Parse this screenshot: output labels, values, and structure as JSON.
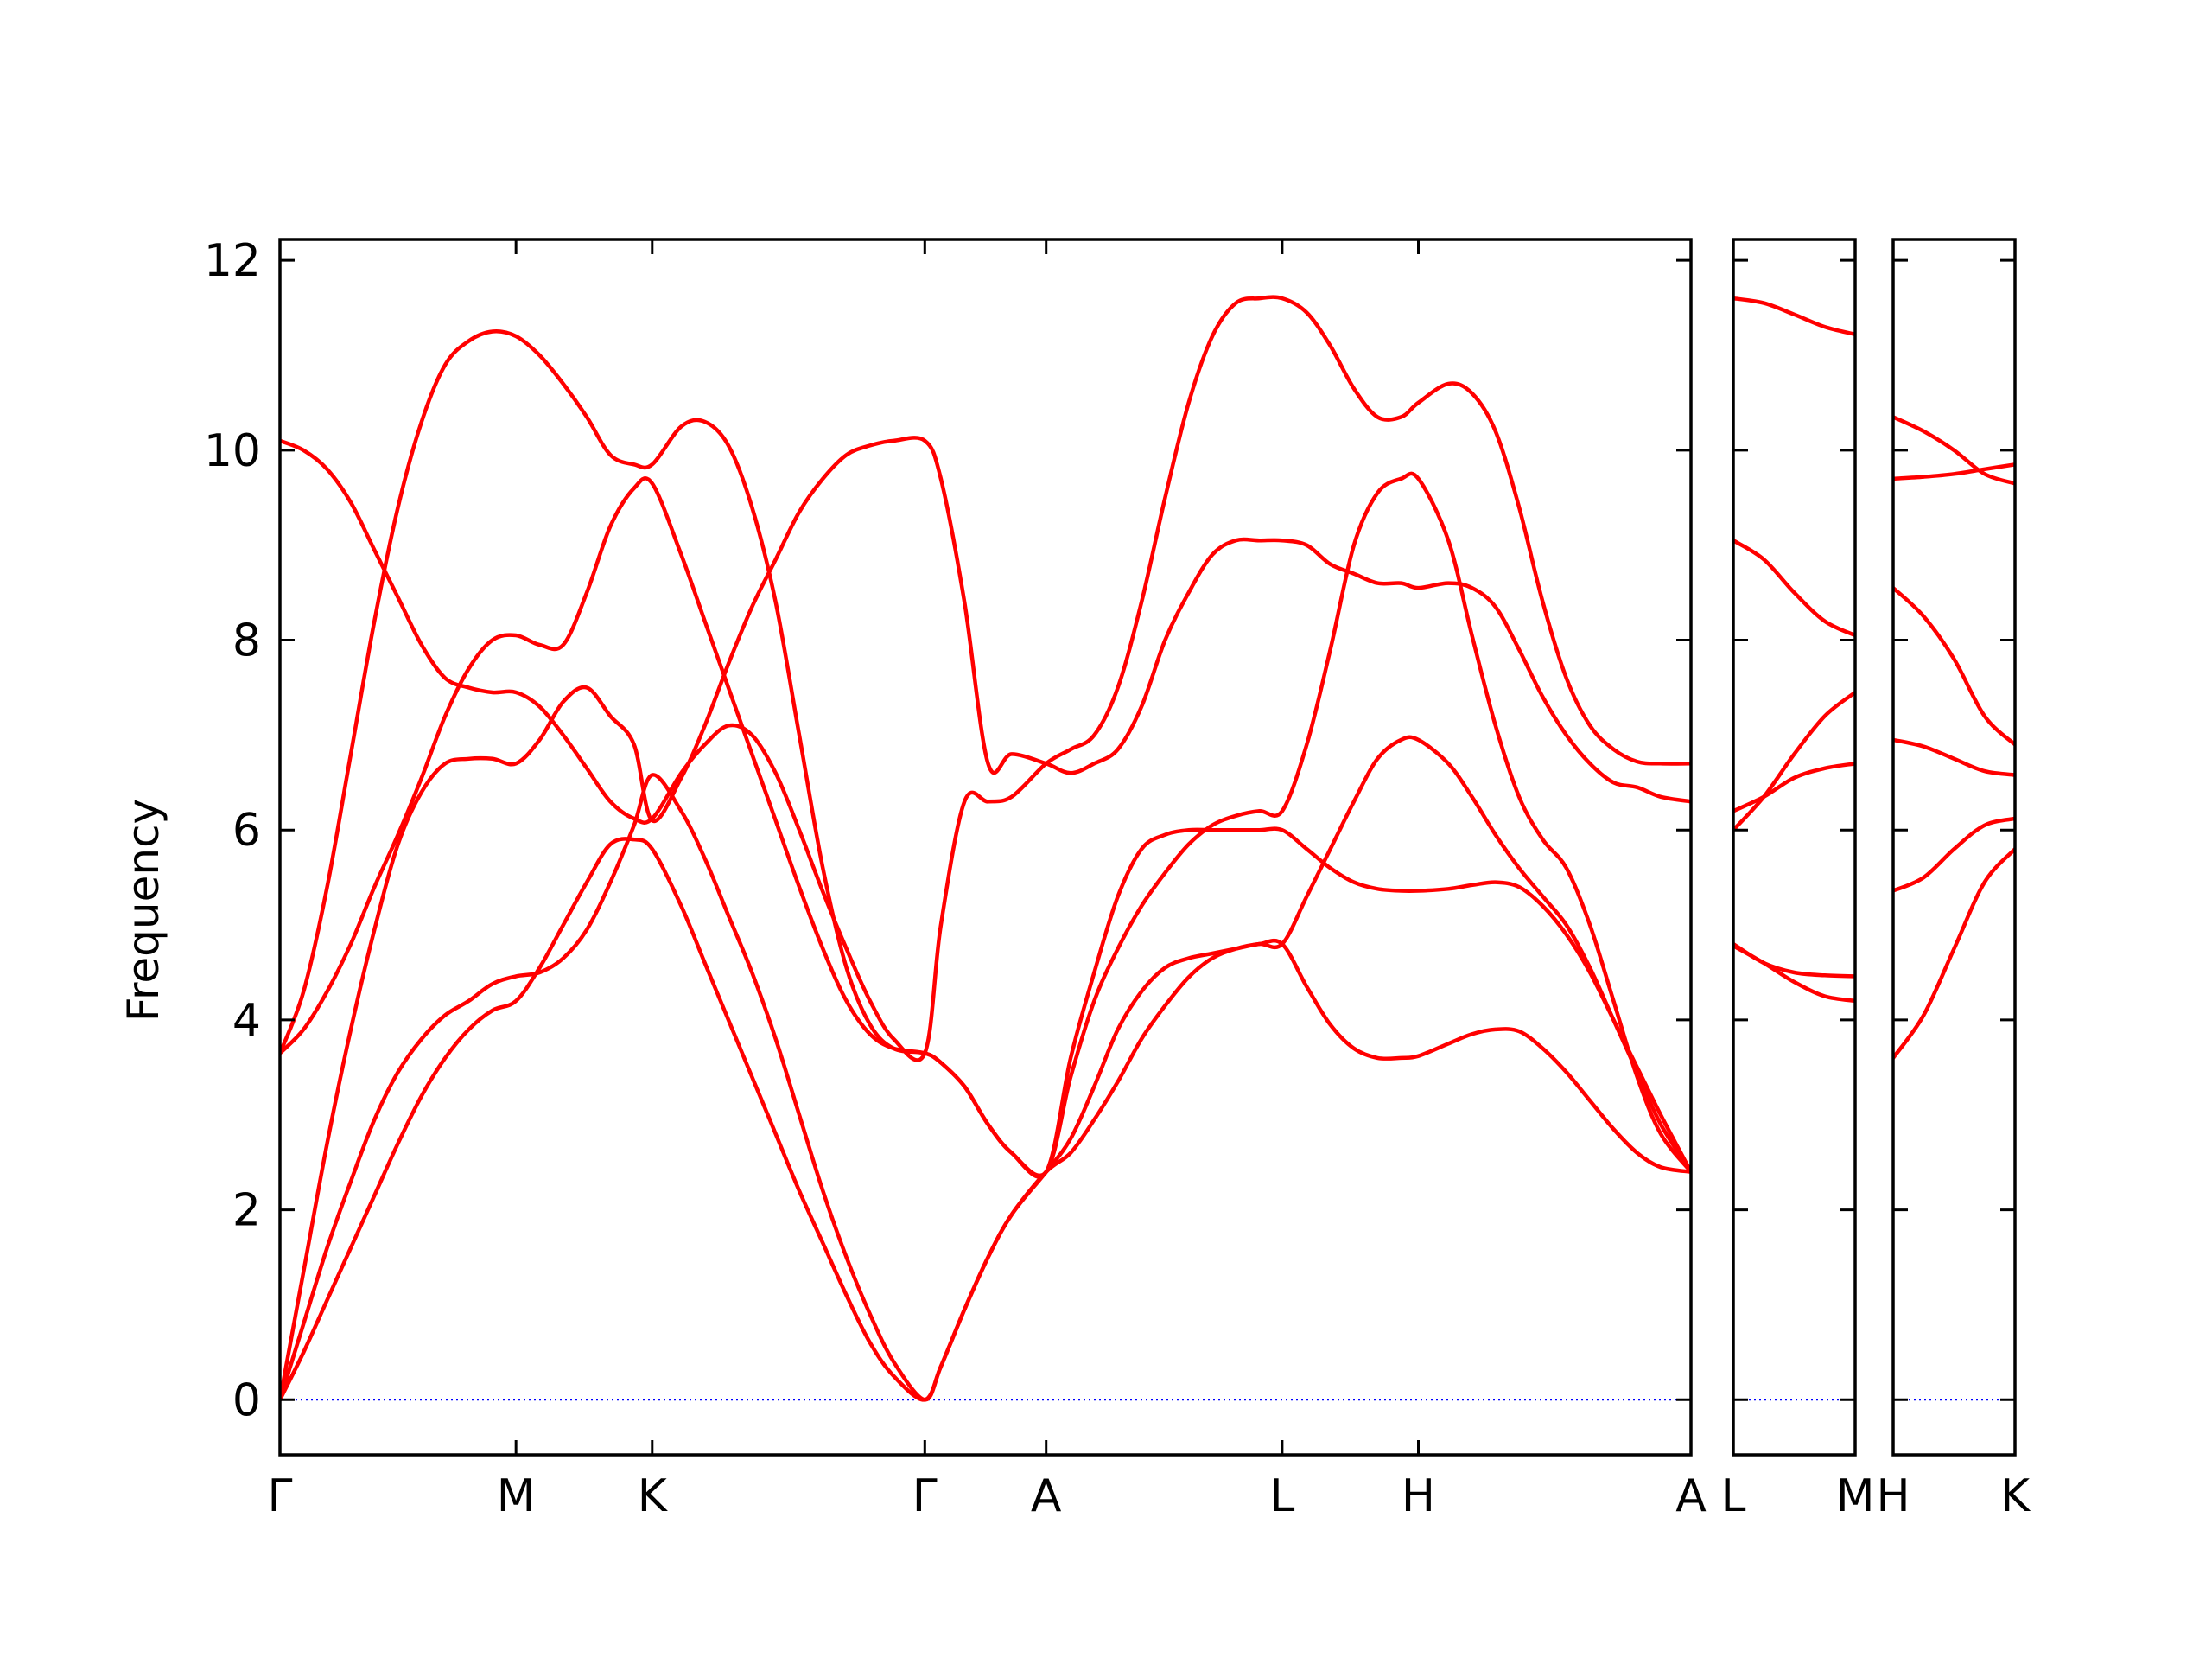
{
  "chart_data": {
    "type": "line",
    "title": "",
    "ylabel": "Frequency",
    "xlabel": "",
    "ylim": [
      -0.58,
      12.22
    ],
    "yticks": [
      0,
      2,
      4,
      6,
      8,
      10,
      12
    ],
    "grid": false,
    "legend": "none",
    "line_color": "#ff0000",
    "zero_line_color": "#0000ff",
    "panels": [
      {
        "id": "main",
        "labels": [
          "Γ",
          "M",
          "K",
          "Γ",
          "A",
          "L",
          "H",
          "A"
        ],
        "positions": [
          0,
          1,
          1.577,
          2.732,
          3.246,
          4.246,
          4.823,
          5.978
        ],
        "series": [
          {
            "x": [
              0,
              0.1,
              0.2,
              0.3,
              0.4,
              0.5,
              0.6,
              0.7,
              0.8,
              0.9,
              1.0,
              1.1,
              1.2,
              1.3,
              1.4,
              1.5,
              1.577,
              1.7,
              1.8,
              1.9,
              2.0,
              2.1,
              2.2,
              2.3,
              2.4,
              2.5,
              2.6,
              2.732,
              2.8,
              2.9,
              3.0,
              3.1,
              3.246,
              3.35,
              3.45,
              3.55,
              3.65,
              3.75,
              3.85,
              3.95,
              4.05,
              4.15,
              4.246,
              4.35,
              4.45,
              4.55,
              4.65,
              4.75,
              4.823,
              4.95,
              5.05,
              5.15,
              5.25,
              5.35,
              5.45,
              5.55,
              5.65,
              5.75,
              5.85,
              5.978
            ],
            "y": [
              0,
              0.5,
              1.05,
              1.6,
              2.15,
              2.7,
              3.2,
              3.6,
              3.9,
              4.1,
              4.2,
              4.55,
              5.0,
              5.45,
              5.85,
              5.9,
              5.8,
              5.2,
              4.6,
              4.0,
              3.4,
              2.8,
              2.2,
              1.65,
              1.1,
              0.6,
              0.25,
              0,
              0.35,
              0.95,
              1.5,
              1.95,
              2.4,
              2.6,
              2.95,
              3.35,
              3.8,
              4.15,
              4.45,
              4.65,
              4.75,
              4.8,
              4.8,
              4.35,
              3.95,
              3.7,
              3.6,
              3.6,
              3.62,
              3.75,
              3.85,
              3.9,
              3.88,
              3.7,
              3.45,
              3.15,
              2.85,
              2.6,
              2.45,
              2.4
            ]
          },
          {
            "x": [
              0,
              0.1,
              0.2,
              0.3,
              0.4,
              0.5,
              0.6,
              0.7,
              0.8,
              0.9,
              1.0,
              1.1,
              1.2,
              1.3,
              1.4,
              1.5,
              1.577,
              1.7,
              1.8,
              1.9,
              2.0,
              2.1,
              2.2,
              2.3,
              2.4,
              2.5,
              2.6,
              2.732,
              2.8,
              2.9,
              3.0,
              3.1,
              3.246,
              3.35,
              3.45,
              3.55,
              3.65,
              3.75,
              3.85,
              3.95,
              4.05,
              4.15,
              4.246,
              4.35,
              4.45,
              4.55,
              4.65,
              4.75,
              4.823,
              4.95,
              5.05,
              5.15,
              5.25,
              5.35,
              5.45,
              5.55,
              5.65,
              5.75,
              5.85,
              5.978
            ],
            "y": [
              0,
              0.8,
              1.6,
              2.3,
              2.95,
              3.45,
              3.8,
              4.05,
              4.2,
              4.38,
              4.46,
              4.5,
              4.65,
              4.95,
              5.45,
              6.05,
              6.58,
              6.2,
              5.7,
              5.1,
              4.5,
              3.8,
              3.0,
              2.2,
              1.5,
              0.9,
              0.4,
              0,
              0.35,
              0.95,
              1.5,
              1.95,
              2.4,
              2.75,
              3.3,
              3.9,
              4.3,
              4.55,
              4.65,
              4.7,
              4.75,
              4.8,
              4.8,
              5.3,
              5.8,
              6.3,
              6.75,
              6.95,
              6.95,
              6.7,
              6.35,
              5.95,
              5.6,
              5.3,
              5.0,
              4.55,
              4.0,
              3.45,
              2.9,
              2.4
            ]
          },
          {
            "x": [
              0,
              0.1,
              0.2,
              0.3,
              0.4,
              0.5,
              0.6,
              0.7,
              0.8,
              0.9,
              1.0,
              1.1,
              1.2,
              1.3,
              1.4,
              1.5,
              1.577,
              1.7,
              1.8,
              1.9,
              2.0,
              2.1,
              2.2,
              2.3,
              2.4,
              2.5,
              2.6,
              2.732,
              2.8,
              2.9,
              3.0,
              3.1,
              3.246,
              3.35,
              3.45,
              3.55,
              3.65,
              3.75,
              3.85,
              3.95,
              4.05,
              4.15,
              4.246,
              4.35,
              4.45,
              4.55,
              4.65,
              4.75,
              4.823,
              4.95,
              5.05,
              5.15,
              5.25,
              5.35,
              5.45,
              5.55,
              5.65,
              5.75,
              5.85,
              5.978
            ],
            "y": [
              0,
              1.35,
              2.7,
              3.9,
              4.95,
              5.85,
              6.4,
              6.7,
              6.75,
              6.75,
              6.7,
              6.95,
              7.35,
              7.5,
              7.2,
              6.9,
              6.1,
              6.55,
              7.1,
              7.75,
              8.35,
              8.85,
              9.35,
              9.7,
              9.95,
              10.05,
              10.1,
              10.1,
              9.7,
              8.4,
              6.7,
              6.8,
              6.7,
              6.6,
              6.7,
              6.85,
              7.3,
              8.0,
              8.5,
              8.9,
              9.05,
              9.05,
              9.05,
              9.0,
              8.8,
              8.7,
              8.6,
              8.6,
              8.55,
              8.6,
              8.55,
              8.35,
              7.9,
              7.4,
              7.0,
              6.7,
              6.5,
              6.45,
              6.35,
              6.3
            ]
          },
          {
            "x": [
              0,
              0.1,
              0.2,
              0.3,
              0.4,
              0.5,
              0.6,
              0.7,
              0.8,
              0.9,
              1.0,
              1.1,
              1.2,
              1.3,
              1.4,
              1.5,
              1.577,
              1.7,
              1.8,
              1.9,
              2.0,
              2.1,
              2.2,
              2.3,
              2.4,
              2.5,
              2.6,
              2.732,
              2.8,
              2.9,
              3.0,
              3.1,
              3.246,
              3.35,
              3.45,
              3.55,
              3.65,
              3.75,
              3.85,
              3.95,
              4.05,
              4.15,
              4.246,
              4.35,
              4.45,
              4.55,
              4.65,
              4.75,
              4.823,
              4.95,
              5.05,
              5.15,
              5.25,
              5.35,
              5.45,
              5.55,
              5.65,
              5.75,
              5.85,
              5.978
            ],
            "y": [
              3.65,
              3.9,
              4.3,
              4.8,
              5.4,
              5.95,
              6.55,
              7.2,
              7.7,
              8.0,
              8.05,
              7.95,
              7.95,
              8.5,
              9.2,
              9.6,
              9.65,
              8.9,
              8.2,
              7.5,
              6.8,
              6.1,
              5.4,
              4.75,
              4.2,
              3.85,
              3.7,
              3.65,
              3.55,
              3.3,
              2.9,
              2.6,
              2.4,
              3.6,
              4.5,
              5.3,
              5.8,
              5.95,
              6.0,
              6.0,
              6.0,
              6.0,
              6.0,
              5.8,
              5.6,
              5.45,
              5.38,
              5.36,
              5.36,
              5.38,
              5.42,
              5.45,
              5.4,
              5.2,
              4.9,
              4.5,
              4.0,
              3.5,
              3.0,
              2.4
            ]
          },
          {
            "x": [
              0,
              0.1,
              0.2,
              0.3,
              0.4,
              0.5,
              0.6,
              0.7,
              0.8,
              0.9,
              1.0,
              1.1,
              1.2,
              1.3,
              1.4,
              1.5,
              1.577,
              1.7,
              1.8,
              1.9,
              2.0,
              2.1,
              2.2,
              2.3,
              2.4,
              2.5,
              2.6,
              2.732,
              2.8,
              2.9,
              3.0,
              3.1,
              3.246,
              3.35,
              3.45,
              3.55,
              3.65,
              3.75,
              3.85,
              3.95,
              4.05,
              4.15,
              4.246,
              4.35,
              4.45,
              4.55,
              4.65,
              4.75,
              4.823,
              4.95,
              5.05,
              5.15,
              5.25,
              5.35,
              5.45,
              5.55,
              5.65,
              5.75,
              5.85,
              5.978
            ],
            "y": [
              3.65,
              4.3,
              5.4,
              6.8,
              8.2,
              9.4,
              10.3,
              10.9,
              11.15,
              11.25,
              11.2,
              11.0,
              10.7,
              10.35,
              9.95,
              9.85,
              9.85,
              10.25,
              10.3,
              10.05,
              9.4,
              8.4,
              7.0,
              5.6,
              4.55,
              3.95,
              3.7,
              3.65,
              3.55,
              3.3,
              2.9,
              2.6,
              2.4,
              3.4,
              4.2,
              4.75,
              5.2,
              5.55,
              5.85,
              6.05,
              6.15,
              6.2,
              6.2,
              6.9,
              7.9,
              9.0,
              9.55,
              9.7,
              9.7,
              9.05,
              8.05,
              7.1,
              6.35,
              5.9,
              5.6,
              5.0,
              4.2,
              3.4,
              2.8,
              2.4
            ]
          },
          {
            "x": [
              0,
              0.1,
              0.2,
              0.3,
              0.4,
              0.5,
              0.6,
              0.7,
              0.8,
              0.9,
              1.0,
              1.1,
              1.2,
              1.3,
              1.4,
              1.5,
              1.577,
              1.7,
              1.8,
              1.9,
              2.0,
              2.1,
              2.2,
              2.3,
              2.4,
              2.5,
              2.6,
              2.732,
              2.8,
              2.9,
              3.0,
              3.1,
              3.246,
              3.35,
              3.45,
              3.55,
              3.65,
              3.75,
              3.85,
              3.95,
              4.05,
              4.15,
              4.246,
              4.35,
              4.45,
              4.55,
              4.65,
              4.75,
              4.823,
              4.95,
              5.05,
              5.15,
              5.25,
              5.35,
              5.45,
              5.55,
              5.65,
              5.75,
              5.85,
              5.978
            ],
            "y": [
              10.1,
              10.0,
              9.8,
              9.45,
              8.95,
              8.45,
              7.95,
              7.6,
              7.5,
              7.45,
              7.45,
              7.3,
              7.0,
              6.65,
              6.3,
              6.12,
              6.12,
              6.6,
              6.9,
              7.1,
              7.0,
              6.6,
              6.0,
              5.35,
              4.75,
              4.2,
              3.8,
              3.65,
              5.0,
              6.3,
              6.3,
              6.35,
              6.7,
              6.85,
              7.0,
              7.5,
              8.4,
              9.5,
              10.5,
              11.2,
              11.55,
              11.6,
              11.6,
              11.45,
              11.1,
              10.65,
              10.35,
              10.35,
              10.5,
              10.7,
              10.6,
              10.2,
              9.4,
              8.4,
              7.6,
              7.1,
              6.85,
              6.72,
              6.7,
              6.7
            ]
          }
        ]
      },
      {
        "id": "L-M",
        "labels": [
          "L",
          "M"
        ],
        "positions": [
          0,
          1
        ],
        "series": [
          {
            "x": [
              0,
              0.25,
              0.5,
              0.75,
              1.0
            ],
            "y": [
              11.6,
              11.55,
              11.43,
              11.3,
              11.22
            ]
          },
          {
            "x": [
              0,
              0.25,
              0.5,
              0.75,
              1.0
            ],
            "y": [
              9.05,
              8.85,
              8.5,
              8.2,
              8.05
            ]
          },
          {
            "x": [
              0,
              0.25,
              0.5,
              0.75,
              1.0
            ],
            "y": [
              6.2,
              6.35,
              6.55,
              6.65,
              6.7
            ]
          },
          {
            "x": [
              0,
              0.25,
              0.5,
              0.75,
              1.0
            ],
            "y": [
              6.0,
              6.35,
              6.8,
              7.2,
              7.45
            ]
          },
          {
            "x": [
              0,
              0.25,
              0.5,
              0.75,
              1.0
            ],
            "y": [
              4.8,
              4.6,
              4.5,
              4.47,
              4.46
            ]
          },
          {
            "x": [
              0,
              0.25,
              0.5,
              0.75,
              1.0
            ],
            "y": [
              4.78,
              4.6,
              4.4,
              4.25,
              4.2
            ]
          }
        ]
      },
      {
        "id": "H-K",
        "labels": [
          "H",
          "K"
        ],
        "positions": [
          0,
          1
        ],
        "series": [
          {
            "x": [
              0,
              0.25,
              0.5,
              0.75,
              1.0
            ],
            "y": [
              10.35,
              10.2,
              10.0,
              9.75,
              9.65
            ]
          },
          {
            "x": [
              0,
              0.25,
              0.5,
              0.75,
              1.0
            ],
            "y": [
              9.7,
              9.72,
              9.75,
              9.8,
              9.85
            ]
          },
          {
            "x": [
              0,
              0.25,
              0.5,
              0.75,
              1.0
            ],
            "y": [
              8.55,
              8.25,
              7.8,
              7.2,
              6.9
            ]
          },
          {
            "x": [
              0,
              0.25,
              0.5,
              0.75,
              1.0
            ],
            "y": [
              6.95,
              6.88,
              6.75,
              6.62,
              6.58
            ]
          },
          {
            "x": [
              0,
              0.25,
              0.5,
              0.75,
              1.0
            ],
            "y": [
              5.36,
              5.5,
              5.8,
              6.05,
              6.12
            ]
          },
          {
            "x": [
              0,
              0.25,
              0.5,
              0.75,
              1.0
            ],
            "y": [
              3.6,
              4.05,
              4.75,
              5.45,
              5.8
            ]
          }
        ]
      }
    ]
  }
}
